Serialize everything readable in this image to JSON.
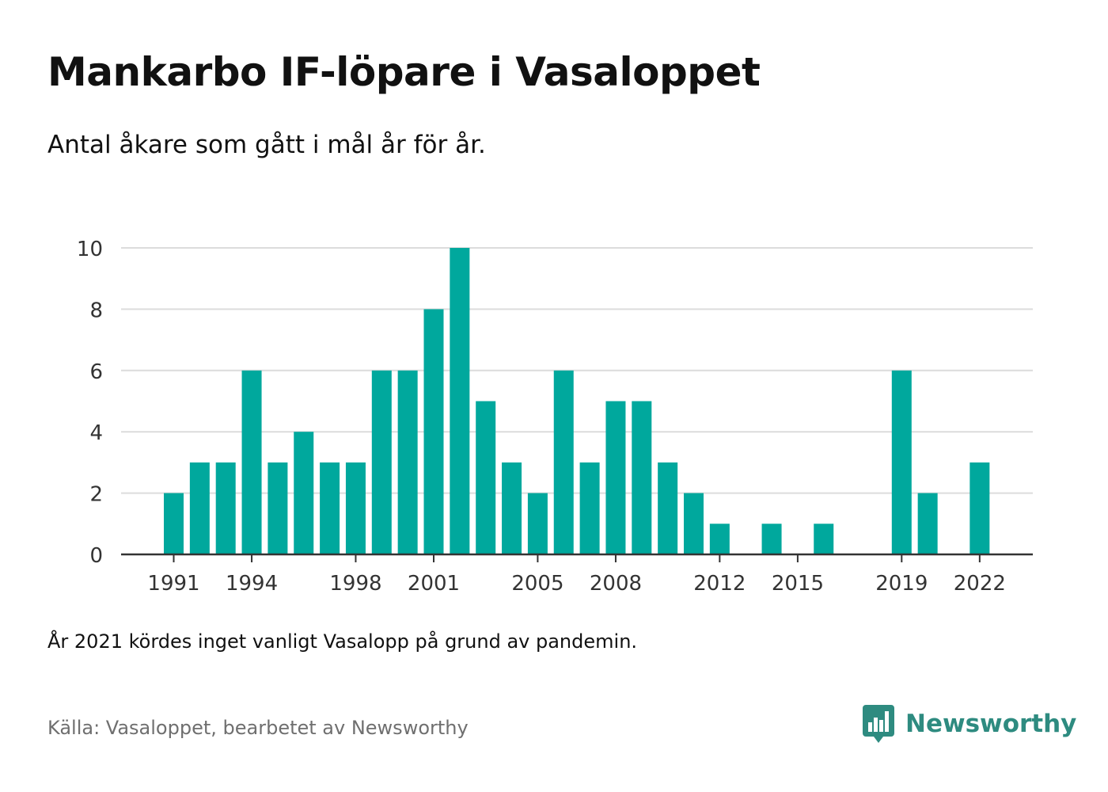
{
  "header": {
    "title": "Mankarbo IF-löpare i Vasaloppet",
    "subtitle": "Antal åkare som gått i mål år för år."
  },
  "footer": {
    "note": "År 2021 kördes inget vanligt Vasalopp på grund av pandemin.",
    "source": "Källa: Vasaloppet, bearbetet av Newsworthy",
    "brand": "Newsworthy",
    "brand_icon": "bar-chart-speech-bubble-icon"
  },
  "colors": {
    "bar": "#00a89d",
    "brand": "#2e8b80",
    "grid": "#dcdcdc",
    "axis": "#333333"
  },
  "chart_data": {
    "type": "bar",
    "x": [
      1991,
      1992,
      1993,
      1994,
      1995,
      1996,
      1997,
      1998,
      1999,
      2000,
      2001,
      2002,
      2003,
      2004,
      2005,
      2006,
      2007,
      2008,
      2009,
      2010,
      2011,
      2012,
      2013,
      2014,
      2015,
      2016,
      2017,
      2018,
      2019,
      2020,
      2021,
      2022
    ],
    "values": [
      2,
      3,
      3,
      6,
      3,
      4,
      3,
      3,
      6,
      6,
      8,
      10,
      5,
      3,
      2,
      6,
      3,
      5,
      5,
      3,
      2,
      1,
      0,
      1,
      0,
      1,
      0,
      0,
      6,
      2,
      0,
      3
    ],
    "x_ticks": [
      1991,
      1994,
      1998,
      2001,
      2005,
      2008,
      2012,
      2015,
      2019,
      2022
    ],
    "y_ticks": [
      0,
      2,
      4,
      6,
      8,
      10
    ],
    "ylim": [
      0,
      10
    ],
    "xlabel": "",
    "ylabel": "",
    "grid": true,
    "legend": "none"
  }
}
